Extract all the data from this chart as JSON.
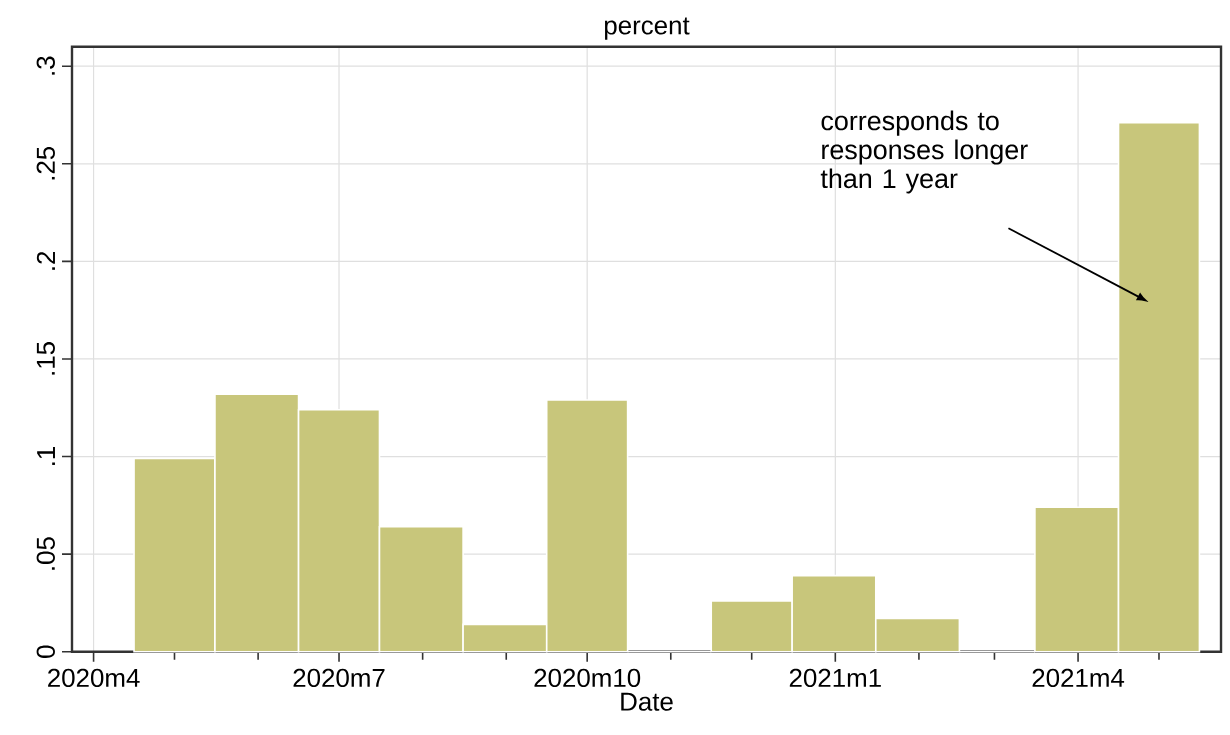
{
  "chart_data": {
    "type": "histogram",
    "title": "percent",
    "xlabel": "Date",
    "bins": [
      "2020-04-16",
      "2020-05-16",
      "2020-06-16",
      "2020-07-16",
      "2020-08-16",
      "2020-09-16",
      "2020-10-16",
      "2020-11-16",
      "2020-12-16",
      "2021-01-16",
      "2021-02-16",
      "2021-03-16",
      "2021-04-16",
      "2021-05-16"
    ],
    "values": [
      0.099,
      0.132,
      0.124,
      0.064,
      0.014,
      0.129,
      0,
      0.026,
      0.039,
      0.017,
      0,
      0.074,
      0.271
    ],
    "color": "#c8c67b",
    "xlim": [
      "2020-03-24",
      "2021-05-24"
    ],
    "xticks": [
      {
        "value": "2020-04",
        "label": "2020m4"
      },
      {
        "value": "2020-05",
        "label": null
      },
      {
        "value": "2020-06",
        "label": null
      },
      {
        "value": "2020-07",
        "label": "2020m7"
      },
      {
        "value": "2020-08",
        "label": null
      },
      {
        "value": "2020-09",
        "label": null
      },
      {
        "value": "2020-10",
        "label": "2020m10"
      },
      {
        "value": "2020-11",
        "label": null
      },
      {
        "value": "2020-12",
        "label": null
      },
      {
        "value": "2021-01",
        "label": "2021m1"
      },
      {
        "value": "2021-02",
        "label": null
      },
      {
        "value": "2021-03",
        "label": null
      },
      {
        "value": "2021-04",
        "label": "2021m4"
      },
      {
        "value": "2021-05",
        "label": null
      }
    ],
    "ylim": [
      0,
      0.31
    ],
    "yticks": [
      0,
      {
        "value": 0.05,
        "label": ".05"
      },
      {
        "value": 0.1,
        "label": ".1"
      },
      {
        "value": 0.15,
        "label": ".15"
      },
      {
        "value": 0.2,
        "label": ".2"
      },
      {
        "value": 0.25,
        "label": ".25"
      },
      {
        "value": 0.3,
        "label": ".3"
      }
    ],
    "grid": true,
    "annotations": [
      "corresponds to responses longer than 1 year"
    ]
  }
}
